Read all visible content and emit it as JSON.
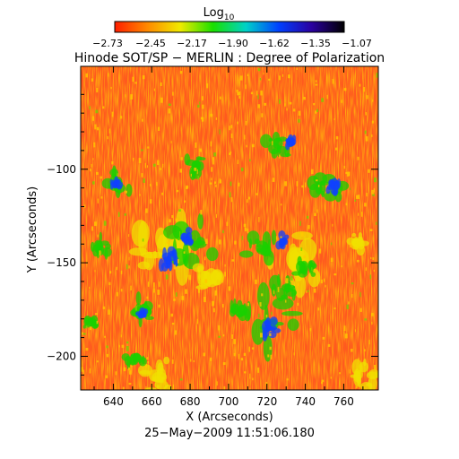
{
  "colorbar": {
    "label": "Log",
    "label_subscript": "10",
    "ticks": [
      "−2.73",
      "−2.45",
      "−2.17",
      "−1.90",
      "−1.62",
      "−1.35",
      "−1.07"
    ],
    "stops": [
      "#ff1e00",
      "#ff8a00",
      "#f0ea00",
      "#19e000",
      "#00d2c8",
      "#0040ff",
      "#2a00a0",
      "#000000"
    ]
  },
  "title": "Hinode SOT/SP − MERLIN : Degree of Polarization",
  "map": {
    "xlabel": "X (Arcseconds)",
    "ylabel": "Y (Arcseconds)",
    "x_ticks": [
      "640",
      "660",
      "680",
      "700",
      "720",
      "740",
      "760"
    ],
    "y_ticks": [
      "−100",
      "−150",
      "−200"
    ],
    "x_range": [
      623,
      778
    ],
    "y_range": [
      -218,
      -45
    ],
    "background_color": "#ff5a1e"
  },
  "timestamp": "25−May−2009 11:51:06.180"
}
